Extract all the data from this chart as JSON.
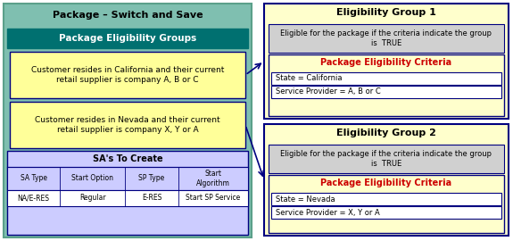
{
  "title": "Package – Switch and Save",
  "pkg_border_color": "#5BA08A",
  "pkg_bg_color": "#7FBFB0",
  "elig_groups_header": "Package Eligibility Groups",
  "elig_groups_header_bg": "#007070",
  "elig_groups_header_fg": "white",
  "group1_text": "Customer resides in California and their current\nretail supplier is company A, B or C",
  "group2_text": "Customer resides in Nevada and their current\nretail supplier is company X, Y or A",
  "group_box_bg": "#FFFF99",
  "group_box_border": "#000080",
  "sa_header": "SA's To Create",
  "sa_bg": "#CCCCFF",
  "sa_border": "#000080",
  "sa_col_headers": [
    "SA Type",
    "Start Option",
    "SP Type",
    "Start\nAlgorithm"
  ],
  "sa_col_values": [
    "NA/E-RES",
    "Regular",
    "E-RES",
    "Start SP Service"
  ],
  "eg1_title": "Eligibility Group 1",
  "eg1_desc": "Eligible for the package if the criteria indicate the group\nis  TRUE",
  "eg1_criteria_header": "Package Eligibility Criteria",
  "eg1_criteria1": "State = California",
  "eg1_criteria2": "Service Provider = A, B or C",
  "eg2_title": "Eligibility Group 2",
  "eg2_desc": "Eligible for the package if the criteria indicate the group\nis  TRUE",
  "eg2_criteria_header": "Package Eligibility Criteria",
  "eg2_criteria1": "State = Nevada",
  "eg2_criteria2": "Service Provider = X, Y or A",
  "eg_outer_bg": "#FFFFCC",
  "eg_outer_border": "#000080",
  "eg_desc_bg": "#D0D0D0",
  "eg_criteria_header_color": "#CC0000",
  "eg_criteria_inner_border": "#000080",
  "eg_criteria_box_bg": "white",
  "arrow_color": "#000080"
}
